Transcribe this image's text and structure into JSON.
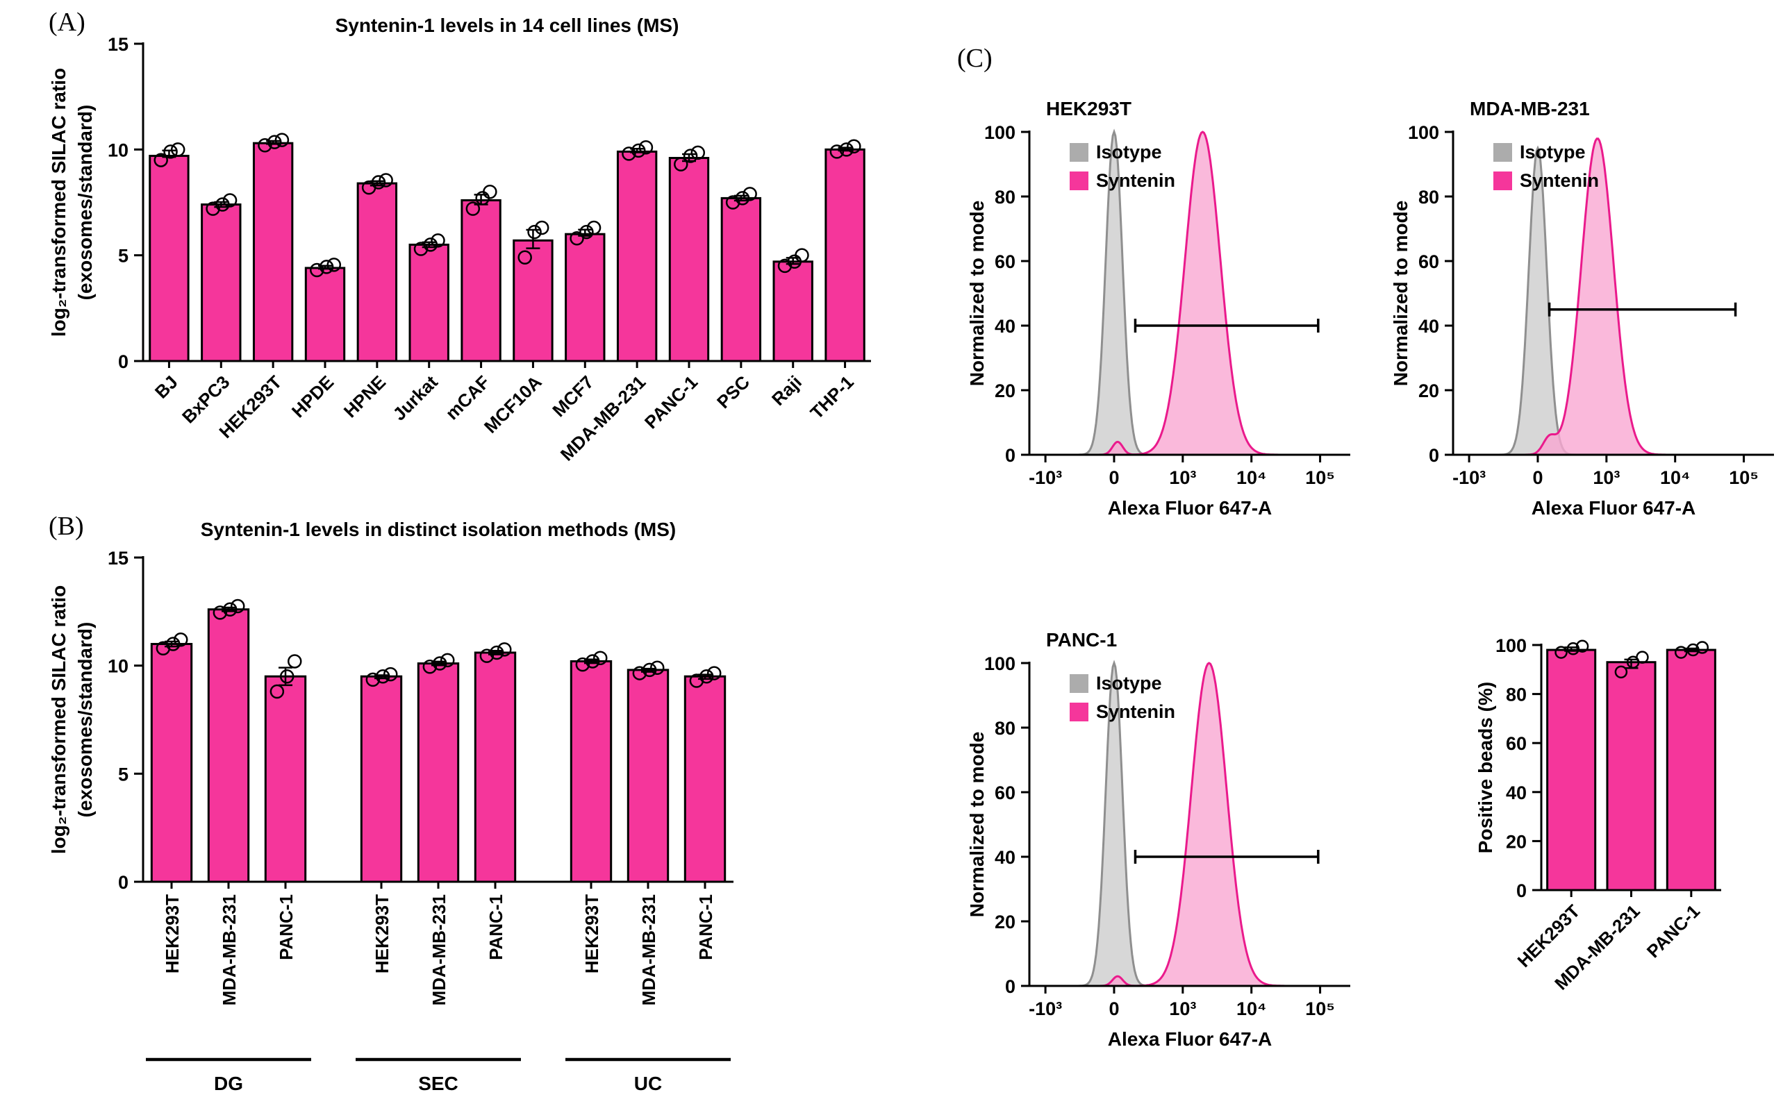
{
  "figure": {
    "panel_labels": {
      "a": "(A)",
      "b": "(B)",
      "c": "(C)"
    }
  },
  "colors": {
    "bar_fill": "#F5369B",
    "signal_stroke": "#EA1A8C",
    "signal_fill": "#F9A8D2",
    "isotype_stroke": "#8F8F8F",
    "isotype_fill": "#D4D4D4",
    "legend_isotype": "#ACACAC",
    "legend_signal": "#F5369B"
  },
  "chart_data": [
    {
      "id": "cell-lines",
      "type": "bar",
      "title": "Syntenin-1 levels in 14 cell lines (MS)",
      "ylabel_line1": "log₂-transformed SILAC ratio",
      "ylabel_line2": "(exosomes/standard)",
      "ylim": [
        0,
        15
      ],
      "yticks": [
        0,
        5,
        10,
        15
      ],
      "categories": [
        "BJ",
        "BxPC3",
        "HEK293T",
        "HPDE",
        "HPNE",
        "Jurkat",
        "mCAF",
        "MCF10A",
        "MCF7",
        "MDA-MB-231",
        "PANC-1",
        "PSC",
        "Raji",
        "THP-1"
      ],
      "values": [
        9.7,
        7.4,
        10.3,
        4.4,
        8.4,
        5.5,
        7.6,
        5.7,
        6.0,
        9.9,
        9.6,
        7.7,
        4.7,
        10.0
      ],
      "points": [
        [
          9.5,
          9.9,
          10.0
        ],
        [
          7.2,
          7.4,
          7.6
        ],
        [
          10.2,
          10.35,
          10.45
        ],
        [
          4.3,
          4.45,
          4.55
        ],
        [
          8.2,
          8.45,
          8.55
        ],
        [
          5.3,
          5.5,
          5.7
        ],
        [
          7.2,
          7.7,
          8.0
        ],
        [
          4.9,
          6.1,
          6.3
        ],
        [
          5.8,
          6.1,
          6.3
        ],
        [
          9.8,
          9.95,
          10.1
        ],
        [
          9.3,
          9.7,
          9.85
        ],
        [
          7.5,
          7.7,
          7.9
        ],
        [
          4.5,
          4.7,
          5.0
        ],
        [
          9.9,
          10.0,
          10.15
        ]
      ]
    },
    {
      "id": "isolation-methods",
      "type": "grouped-bar",
      "title": "Syntenin-1 levels in distinct isolation methods (MS)",
      "ylabel_line1": "log₂-transformed SILAC ratio",
      "ylabel_line2": "(exosomes/standard)",
      "ylim": [
        0,
        15
      ],
      "yticks": [
        0,
        5,
        10,
        15
      ],
      "groups": [
        {
          "label": "DG",
          "categories": [
            "HEK293T",
            "MDA-MB-231",
            "PANC-1"
          ],
          "values": [
            11.0,
            12.6,
            9.5
          ],
          "points": [
            [
              10.8,
              11.0,
              11.2
            ],
            [
              12.45,
              12.6,
              12.75
            ],
            [
              8.8,
              9.5,
              10.2
            ]
          ]
        },
        {
          "label": "SEC",
          "categories": [
            "HEK293T",
            "MDA-MB-231",
            "PANC-1"
          ],
          "values": [
            9.5,
            10.1,
            10.6
          ],
          "points": [
            [
              9.35,
              9.5,
              9.6
            ],
            [
              9.95,
              10.1,
              10.25
            ],
            [
              10.45,
              10.6,
              10.75
            ]
          ]
        },
        {
          "label": "UC",
          "categories": [
            "HEK293T",
            "MDA-MB-231",
            "PANC-1"
          ],
          "values": [
            10.2,
            9.8,
            9.5
          ],
          "points": [
            [
              10.05,
              10.2,
              10.35
            ],
            [
              9.65,
              9.8,
              9.9
            ],
            [
              9.3,
              9.5,
              9.65
            ]
          ]
        }
      ]
    },
    {
      "id": "flow-hek293t",
      "type": "histogram",
      "title": "HEK293T",
      "xlabel": "Alexa Fluor 647-A",
      "ylabel": "Normalized to mode",
      "ylim": [
        0,
        100
      ],
      "yticks": [
        0,
        20,
        40,
        60,
        80,
        100
      ],
      "xticks": [
        "-10³",
        "0",
        "10³",
        "10⁴",
        "10⁵"
      ],
      "legend": [
        {
          "label": "Isotype",
          "swatch": "gray"
        },
        {
          "label": "Syntenin",
          "swatch": "pink"
        }
      ],
      "curves": [
        {
          "name": "Isotype",
          "color_key": "gray",
          "components": [
            {
              "center": 0.264,
              "width": 0.026,
              "height": 100
            }
          ]
        },
        {
          "name": "Syntenin",
          "color_key": "pink",
          "components": [
            {
              "center": 0.54,
              "width": 0.055,
              "height": 100
            },
            {
              "center": 0.275,
              "width": 0.016,
              "height": 4
            }
          ]
        }
      ],
      "gate": {
        "y": 40,
        "x1": 0.33,
        "x2": 0.9
      }
    },
    {
      "id": "flow-mda-mb-231",
      "type": "histogram",
      "title": "MDA-MB-231",
      "xlabel": "Alexa Fluor 647-A",
      "ylabel": "Normalized to mode",
      "ylim": [
        0,
        100
      ],
      "yticks": [
        0,
        20,
        40,
        60,
        80,
        100
      ],
      "xticks": [
        "-10³",
        "0",
        "10³",
        "10⁴",
        "10⁵"
      ],
      "legend": [
        {
          "label": "Isotype",
          "swatch": "gray"
        },
        {
          "label": "Syntenin",
          "swatch": "pink"
        }
      ],
      "curves": [
        {
          "name": "Isotype",
          "color_key": "gray",
          "components": [
            {
              "center": 0.264,
              "width": 0.028,
              "height": 95
            }
          ]
        },
        {
          "name": "Syntenin",
          "color_key": "pink",
          "components": [
            {
              "center": 0.45,
              "width": 0.05,
              "height": 98
            },
            {
              "center": 0.3,
              "width": 0.02,
              "height": 5
            }
          ]
        }
      ],
      "gate": {
        "y": 45,
        "x1": 0.3,
        "x2": 0.88
      }
    },
    {
      "id": "flow-panc-1",
      "type": "histogram",
      "title": "PANC-1",
      "xlabel": "Alexa Fluor 647-A",
      "ylabel": "Normalized to mode",
      "ylim": [
        0,
        100
      ],
      "yticks": [
        0,
        20,
        40,
        60,
        80,
        100
      ],
      "xticks": [
        "-10³",
        "0",
        "10³",
        "10⁴",
        "10⁵"
      ],
      "legend": [
        {
          "label": "Isotype",
          "swatch": "gray"
        },
        {
          "label": "Syntenin",
          "swatch": "pink"
        }
      ],
      "curves": [
        {
          "name": "Isotype",
          "color_key": "gray",
          "components": [
            {
              "center": 0.264,
              "width": 0.026,
              "height": 100
            }
          ]
        },
        {
          "name": "Syntenin",
          "color_key": "pink",
          "components": [
            {
              "center": 0.56,
              "width": 0.055,
              "height": 100
            },
            {
              "center": 0.275,
              "width": 0.016,
              "height": 3
            }
          ]
        }
      ],
      "gate": {
        "y": 40,
        "x1": 0.33,
        "x2": 0.9
      }
    },
    {
      "id": "positive-beads",
      "type": "bar",
      "title": "",
      "ylabel_line1": "Positive beads (%)",
      "ylim": [
        0,
        100
      ],
      "yticks": [
        0,
        20,
        40,
        60,
        80,
        100
      ],
      "categories": [
        "HEK293T",
        "MDA-MB-231",
        "PANC-1"
      ],
      "values": [
        98,
        93,
        98
      ],
      "points": [
        [
          97,
          98.5,
          99.5
        ],
        [
          89,
          93,
          95
        ],
        [
          97,
          98,
          99
        ]
      ]
    }
  ]
}
